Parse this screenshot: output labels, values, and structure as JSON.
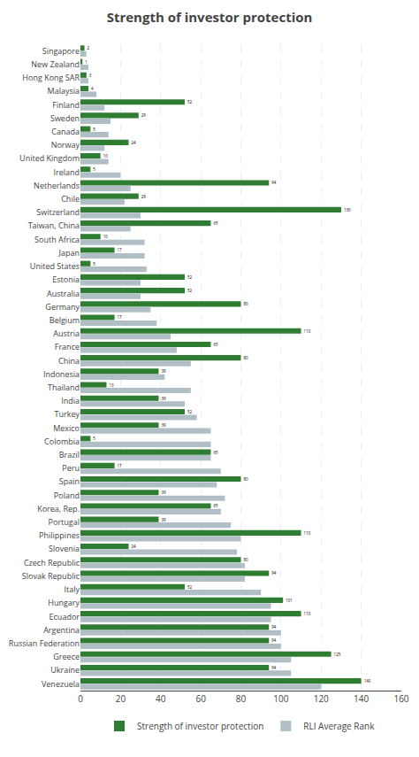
{
  "chart_data": {
    "type": "bar",
    "orientation": "horizontal",
    "title": "Strength of investor protection",
    "categories": [
      "Singapore",
      "New Zealand",
      "Hong Kong SAR",
      "Malaysia",
      "Finland",
      "Sweden",
      "Canada",
      "Norway",
      "United Kingdom",
      "Ireland",
      "Netherlands",
      "Chile",
      "Switzerland",
      "Taiwan, China",
      "South Africa",
      "Japan",
      "United States",
      "Estonia",
      "Australia",
      "Germany",
      "Belgium",
      "Austria",
      "France",
      "China",
      "Indonesia",
      "Thailand",
      "India",
      "Turkey",
      "Mexico",
      "Colombia",
      "Brazil",
      "Peru",
      "Spain",
      "Poland",
      "Korea, Rep.",
      "Portugal",
      "Philippines",
      "Slovenia",
      "Czech Republic",
      "Slovak Republic",
      "Italy",
      "Hungary",
      "Ecuador",
      "Argentina",
      "Russian Federation",
      "Greece",
      "Ukraine",
      "Venezuela"
    ],
    "series": [
      {
        "name": "Strength of investor protection",
        "color": "#2e7d32",
        "data_labels": true,
        "values": [
          2,
          1,
          3,
          4,
          52,
          29,
          5,
          24,
          10,
          5,
          94,
          29,
          130,
          65,
          10,
          17,
          5,
          52,
          52,
          80,
          17,
          110,
          65,
          80,
          39,
          13,
          39,
          52,
          39,
          5,
          65,
          17,
          80,
          39,
          65,
          39,
          110,
          24,
          80,
          94,
          52,
          101,
          110,
          94,
          94,
          125,
          94,
          140
        ]
      },
      {
        "name": "RLI Average Rank",
        "color": "#b0bec5",
        "data_labels": false,
        "values": [
          3,
          4,
          4,
          8,
          12,
          15,
          14,
          12,
          14,
          20,
          25,
          22,
          30,
          25,
          32,
          32,
          33,
          30,
          30,
          35,
          38,
          45,
          48,
          55,
          42,
          55,
          52,
          58,
          65,
          65,
          65,
          70,
          68,
          72,
          70,
          75,
          80,
          78,
          82,
          82,
          90,
          95,
          95,
          100,
          100,
          105,
          105,
          120
        ]
      }
    ],
    "xlim": [
      0,
      160
    ],
    "xticks": [
      0,
      20,
      40,
      60,
      80,
      100,
      120,
      140,
      160
    ],
    "grid": true,
    "legend": "bottom"
  }
}
